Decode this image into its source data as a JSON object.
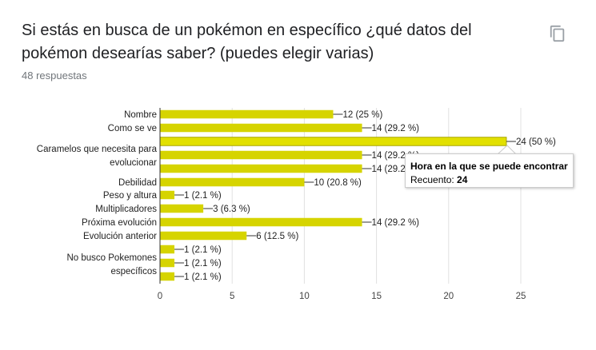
{
  "header": {
    "title": "Si estás en busca de un pokémon en específico ¿qué datos del pokémon desearías saber? (puedes elegir varias)",
    "responses": "48 respuestas",
    "copy_icon": "copy-icon"
  },
  "tooltip": {
    "title": "Hora en la que se puede encontrar",
    "count_label": "Recuento:",
    "count_value": "24"
  },
  "colors": {
    "bar": "#d6d400",
    "bar_highlight": "#e2e000"
  },
  "chart_data": {
    "type": "bar",
    "orientation": "horizontal",
    "xlim": [
      0,
      25
    ],
    "xticks": [
      0,
      5,
      10,
      15,
      20,
      25
    ],
    "grid": true,
    "categories": [
      "Nombre",
      "Como se ve",
      "Hora en la que se puede encontrar",
      "Caramelos que necesita para evolucionar",
      "",
      "Debilidad",
      "Peso y altura",
      "Multiplicadores",
      "Próxima evolución",
      "Evolución anterior",
      "",
      "No busco Pokemones específicos",
      ""
    ],
    "values": [
      12,
      14,
      24,
      14,
      14,
      10,
      1,
      3,
      14,
      6,
      1,
      1,
      1
    ],
    "value_labels": [
      "12 (25 %)",
      "14 (29.2 %)",
      "24 (50 %)",
      "14 (29.2 %)",
      "14 (29.2 %)",
      "10 (20.8 %)",
      "1 (2.1 %)",
      "3 (6.3 %)",
      "14 (29.2 %)",
      "6 (12.5 %)",
      "1 (2.1 %)",
      "1 (2.1 %)",
      "1 (2.1 %)"
    ],
    "axis_labels": [
      {
        "lines": [
          "Nombre"
        ]
      },
      {
        "lines": [
          "Como se ve"
        ]
      },
      {
        "lines": [
          "Caramelos que necesita para",
          "evolucionar"
        ]
      },
      {
        "lines": [
          "Debilidad"
        ]
      },
      {
        "lines": [
          "Peso y altura"
        ]
      },
      {
        "lines": [
          "Multiplicadores"
        ]
      },
      {
        "lines": [
          "Próxima evolución"
        ]
      },
      {
        "lines": [
          "Evolución anterior"
        ]
      },
      {
        "lines": [
          "No busco Pokemones",
          "específicos"
        ]
      }
    ],
    "highlighted_index": 2
  }
}
